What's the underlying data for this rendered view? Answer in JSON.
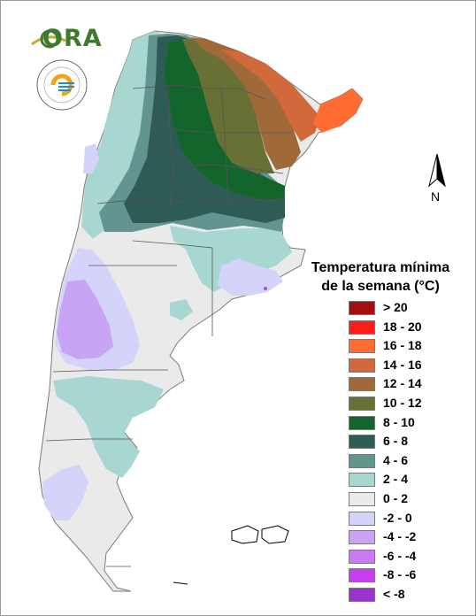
{
  "legend": {
    "title_line1": "Temperatura mínima",
    "title_line2": "de la semana (°C)",
    "items": [
      {
        "label": "> 20",
        "color": "#a50e0e"
      },
      {
        "label": "18 - 20",
        "color": "#ff1c1c"
      },
      {
        "label": "16 - 18",
        "color": "#ff6d32"
      },
      {
        "label": "14 - 16",
        "color": "#d1693a"
      },
      {
        "label": "12 - 14",
        "color": "#a0693a"
      },
      {
        "label": "10 - 12",
        "color": "#687035"
      },
      {
        "label": "8 - 10",
        "color": "#13652c"
      },
      {
        "label": "6 - 8",
        "color": "#2f5b55"
      },
      {
        "label": "4 - 6",
        "color": "#62958f"
      },
      {
        "label": "2 - 4",
        "color": "#a8d6d1"
      },
      {
        "label": "0 - 2",
        "color": "#eaeaea"
      },
      {
        "label": "-2 - 0",
        "color": "#d4d4fb"
      },
      {
        "label": "-4 - -2",
        "color": "#c9a3f4"
      },
      {
        "label": "-6 - -4",
        "color": "#c97bf6"
      },
      {
        "label": "-8 - -6",
        "color": "#c63ef0"
      },
      {
        "label": "< -8",
        "color": "#9933cc"
      }
    ]
  },
  "logos": {
    "ora": "ORA",
    "smn_icon": "smn-seal-icon"
  },
  "north_arrow": {
    "label": "N",
    "icon": "north-arrow-icon"
  }
}
